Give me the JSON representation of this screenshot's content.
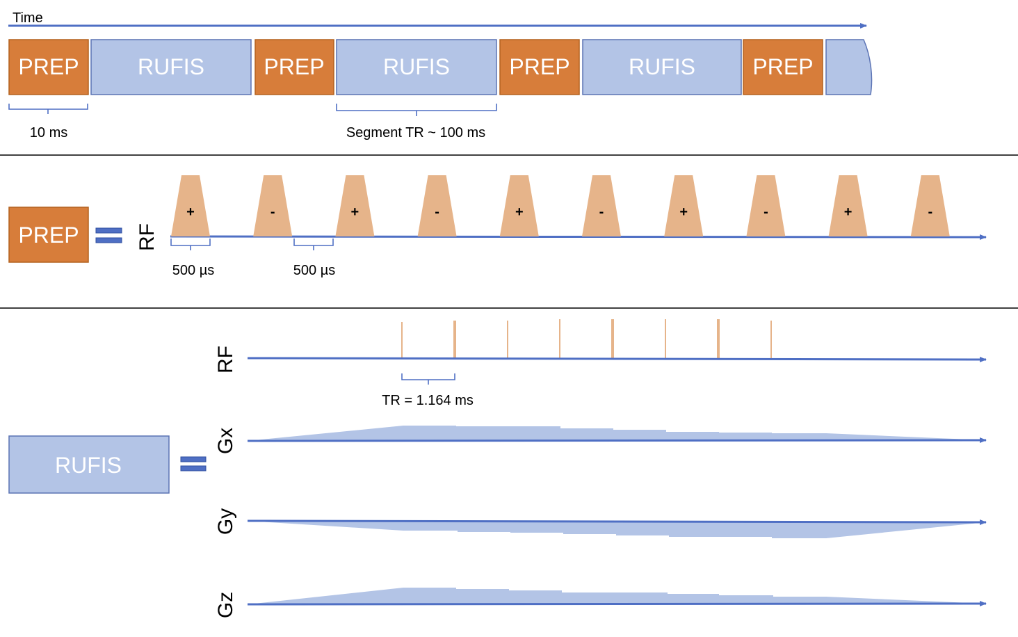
{
  "colors": {
    "axis": "#4F6FC4",
    "prep_fill": "#D77D3A",
    "prep_stroke": "#B4621F",
    "rufis_fill": "#B3C4E6",
    "rufis_stroke": "#5B73B4",
    "pulse_fill": "#E6B48A",
    "divider": "#000000",
    "block_text": "#ffffff"
  },
  "top": {
    "time_label": "Time",
    "blocks": [
      {
        "label": "PREP",
        "kind": "prep"
      },
      {
        "label": "RUFIS",
        "kind": "rufis"
      },
      {
        "label": "PREP",
        "kind": "prep"
      },
      {
        "label": "RUFIS",
        "kind": "rufis"
      },
      {
        "label": "PREP",
        "kind": "prep"
      },
      {
        "label": "RUFIS",
        "kind": "rufis"
      },
      {
        "label": "PREP",
        "kind": "prep"
      },
      {
        "label": "",
        "kind": "rufis-partial"
      }
    ],
    "prep_duration": "10 ms",
    "segment_tr": "Segment TR ~ 100 ms"
  },
  "middle": {
    "block_label": "PREP",
    "axis_label": "RF",
    "pulse_signs": [
      "+",
      "-",
      "+",
      "-",
      "+",
      "-",
      "+",
      "-",
      "+",
      "-"
    ],
    "pulse_duration": "500 µs",
    "gap_duration": "500 µs"
  },
  "bottom": {
    "block_label": "RUFIS",
    "rf_label": "RF",
    "gx_label": "Gx",
    "gy_label": "Gy",
    "gz_label": "Gz",
    "tr_label": "TR = 1.164 ms"
  }
}
